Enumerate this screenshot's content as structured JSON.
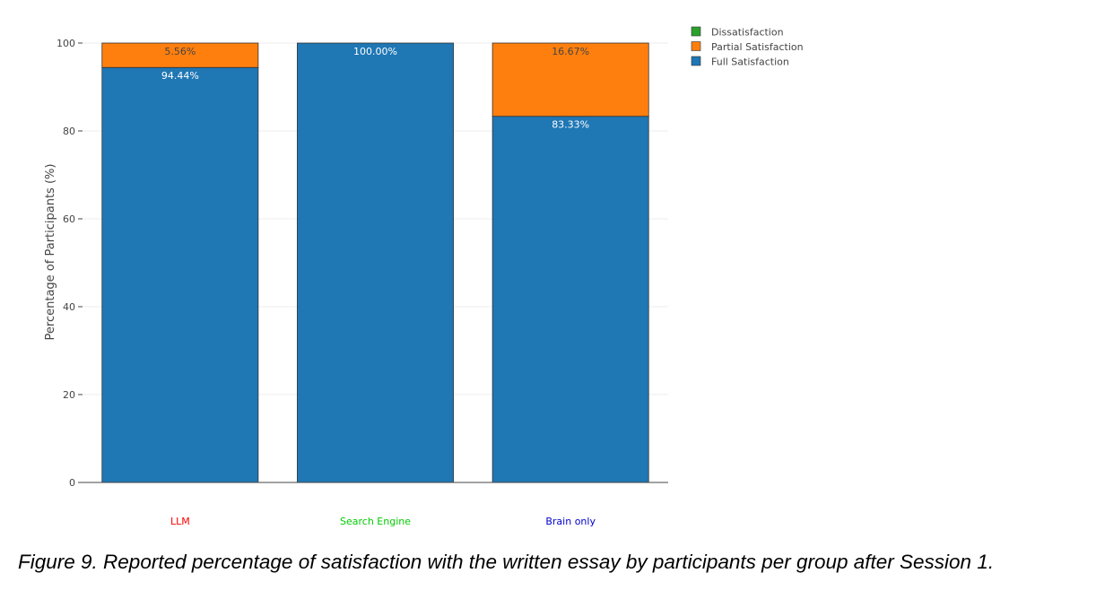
{
  "chart_data": {
    "type": "bar",
    "stacked": true,
    "categories": [
      "LLM",
      "Search Engine",
      "Brain only"
    ],
    "category_colors": [
      "#ff0000",
      "#00cc00",
      "#0000cc"
    ],
    "series": [
      {
        "name": "Full Satisfaction",
        "color": "#1f77b4",
        "label_color": "#ffffff",
        "values": [
          94.44,
          100.0,
          83.33
        ],
        "labels": [
          "94.44%",
          "100.00%",
          "83.33%"
        ]
      },
      {
        "name": "Partial Satisfaction",
        "color": "#ff7f0e",
        "label_color": "#444444",
        "values": [
          5.56,
          0,
          16.67
        ],
        "labels": [
          "5.56%",
          "",
          "16.67%"
        ]
      },
      {
        "name": "Dissatisfaction",
        "color": "#2ca02c",
        "label_color": "#444444",
        "values": [
          0,
          0,
          0
        ],
        "labels": [
          "",
          "",
          ""
        ]
      }
    ],
    "legend_order": [
      "Dissatisfaction",
      "Partial Satisfaction",
      "Full Satisfaction"
    ],
    "ylabel": "Percentage of Participants (%)",
    "xlabel": "",
    "ylim": [
      0,
      100
    ],
    "yticks": [
      0,
      20,
      40,
      60,
      80,
      100
    ],
    "grid": true,
    "legend_position": "top-right"
  },
  "caption": "Figure 9. Reported percentage of satisfaction with the written essay by participants per group after Session 1."
}
